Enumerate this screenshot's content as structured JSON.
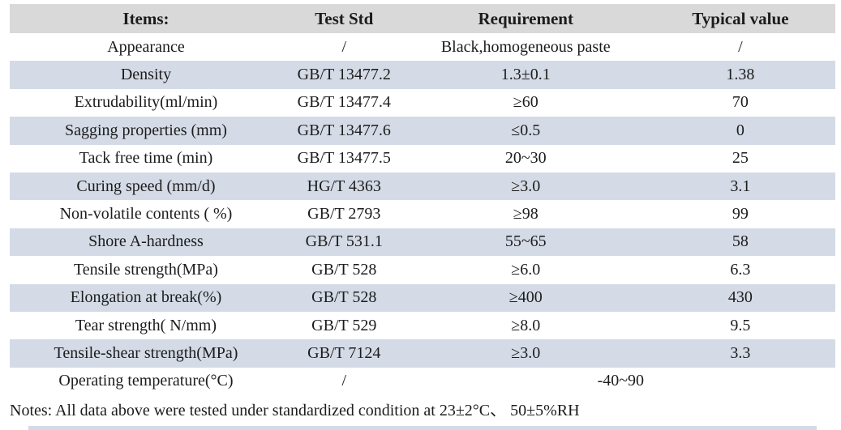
{
  "colors": {
    "header_bg": "#d9d9d9",
    "stripe_bg": "#d4dbe6",
    "text": "#1c1c1c"
  },
  "table": {
    "columns": [
      "Items:",
      "Test Std",
      "Requirement",
      "Typical value"
    ],
    "rows": [
      {
        "item": "Appearance",
        "std": "/",
        "req": "Black,homogeneous paste",
        "typ": "/"
      },
      {
        "item": "Density",
        "std": "GB/T 13477.2",
        "req": "1.3±0.1",
        "typ": "1.38"
      },
      {
        "item": "Extrudability(ml/min)",
        "std": "GB/T 13477.4",
        "req": "≥60",
        "typ": "70"
      },
      {
        "item": "Sagging properties (mm)",
        "std": "GB/T 13477.6",
        "req": "≤0.5",
        "typ": "0"
      },
      {
        "item": "Tack free time (min)",
        "std": "GB/T 13477.5",
        "req": "20~30",
        "typ": "25"
      },
      {
        "item": "Curing speed (mm/d)",
        "std": "HG/T 4363",
        "req": "≥3.0",
        "typ": "3.1"
      },
      {
        "item": "Non-volatile contents ( %)",
        "std": "GB/T 2793",
        "req": "≥98",
        "typ": "99"
      },
      {
        "item": "Shore A-hardness",
        "std": "GB/T 531.1",
        "req": "55~65",
        "typ": "58"
      },
      {
        "item": "Tensile strength(MPa)",
        "std": "GB/T 528",
        "req": "≥6.0",
        "typ": "6.3"
      },
      {
        "item": "Elongation at break(%)",
        "std": "GB/T 528",
        "req": "≥400",
        "typ": "430"
      },
      {
        "item": "Tear strength( N/mm)",
        "std": "GB/T 529",
        "req": "≥8.0",
        "typ": "9.5"
      },
      {
        "item": "Tensile-shear strength(MPa)",
        "std": "GB/T 7124",
        "req": "≥3.0",
        "typ": "3.3"
      },
      {
        "item": "Operating temperature(°C)",
        "std": "/",
        "req": "-40~90",
        "typ": null,
        "merged": true
      }
    ],
    "notes": "Notes: All data above were tested under standardized condition at 23±2°C、 50±5%RH"
  }
}
